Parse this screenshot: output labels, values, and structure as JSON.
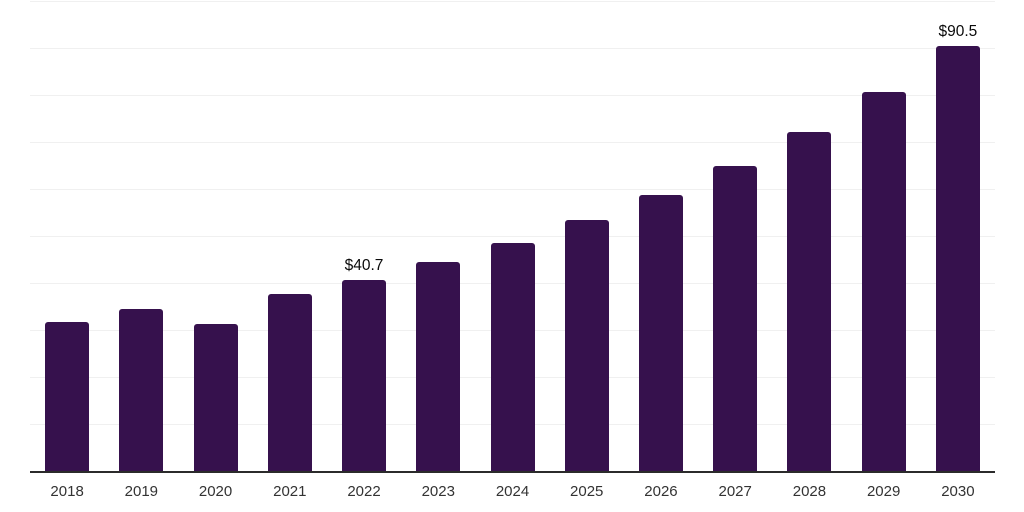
{
  "chart_data": {
    "type": "bar",
    "title": "",
    "xlabel": "",
    "ylabel": "",
    "categories": [
      "2018",
      "2019",
      "2020",
      "2021",
      "2022",
      "2023",
      "2024",
      "2025",
      "2026",
      "2027",
      "2028",
      "2029",
      "2030"
    ],
    "values": [
      31.8,
      34.4,
      31.3,
      37.7,
      40.7,
      44.5,
      48.5,
      53.4,
      58.8,
      64.9,
      72.1,
      80.6,
      90.5
    ],
    "value_labels": [
      "",
      "",
      "",
      "",
      "$40.7",
      "",
      "",
      "",
      "",
      "",
      "",
      "",
      "$90.5"
    ],
    "ylim": [
      0,
      100
    ],
    "grid": "horizontal",
    "grid_step": 10,
    "legend": "none",
    "colors": {
      "bar": "#36114d",
      "axis_line": "#2b2b2b",
      "gridline": "#f0f0f0",
      "tick_label": "#333333",
      "value_label": "#0a0a0a",
      "background": "#ffffff"
    }
  }
}
